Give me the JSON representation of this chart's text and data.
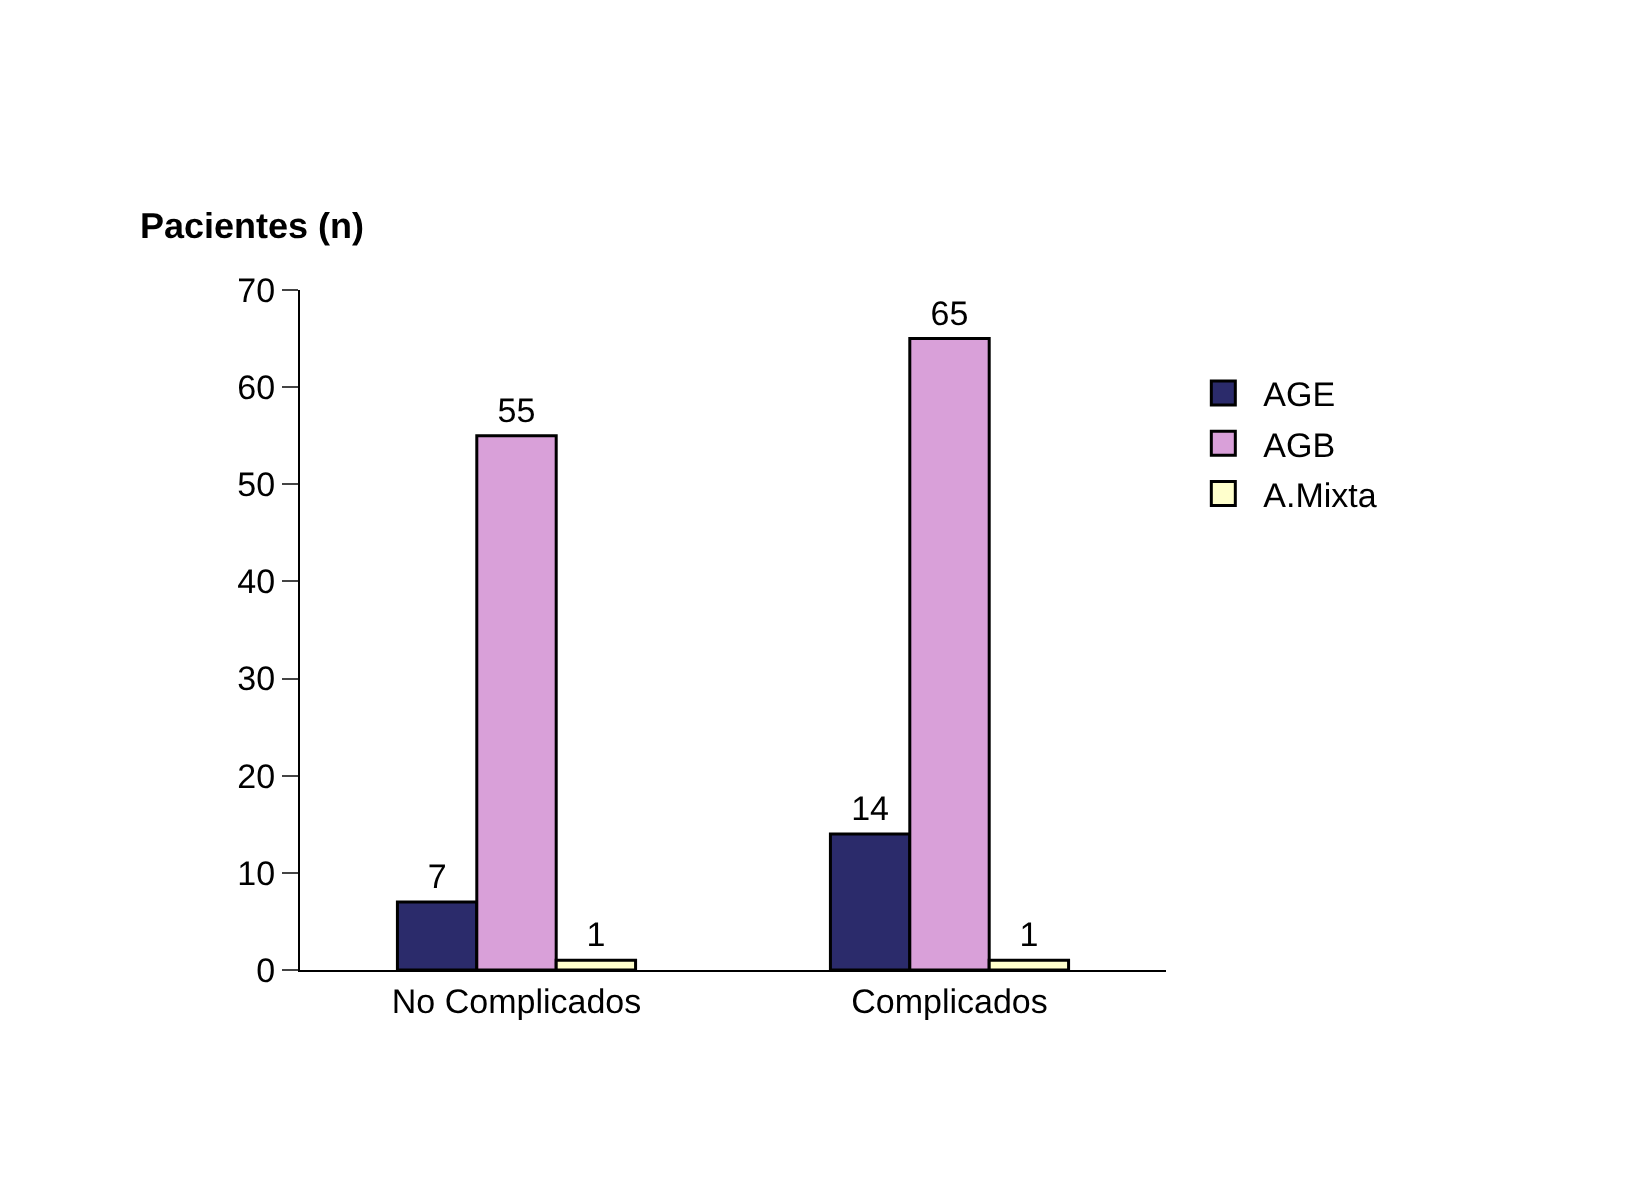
{
  "chart_data": {
    "type": "bar",
    "ylabel": "Pacientes (n)",
    "categories": [
      "No Complicados",
      "Complicados"
    ],
    "series": [
      {
        "name": "AGE",
        "color": "#2b2b6b",
        "values": [
          7,
          14
        ]
      },
      {
        "name": "AGB",
        "color": "#d9a0d9",
        "values": [
          55,
          65
        ]
      },
      {
        "name": "A.Mixta",
        "color": "#ffffcc",
        "values": [
          1,
          1
        ]
      }
    ],
    "ylim": [
      0,
      70
    ],
    "yticks": [
      0,
      10,
      20,
      30,
      40,
      50,
      60,
      70
    ],
    "data_labels": true,
    "legend": "right"
  }
}
